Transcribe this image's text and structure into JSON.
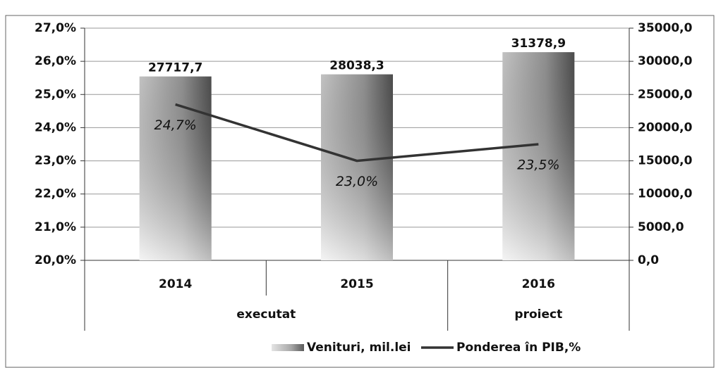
{
  "chart_data": {
    "type": "bar_line",
    "categories": [
      "2014",
      "2015",
      "2016"
    ],
    "category_groups": [
      "executat",
      "executat",
      "proiect"
    ],
    "series": [
      {
        "name": "Venituri, mil.lei",
        "type": "bar",
        "axis": "y2",
        "color": "#777777",
        "values": [
          27717.7,
          28038.3,
          31378.9
        ],
        "value_labels": [
          "27717,7",
          "28038,3",
          "31378,9"
        ]
      },
      {
        "name": "Ponderea în PIB,%",
        "type": "line",
        "axis": "y",
        "color": "#333333",
        "values": [
          24.7,
          23.0,
          23.5
        ],
        "value_labels": [
          "24,7%",
          "23,0%",
          "23,5%"
        ]
      }
    ],
    "ylim": [
      20,
      27
    ],
    "yticks": [
      {
        "value": 20,
        "label": "20,0%"
      },
      {
        "value": 21,
        "label": "21,0%"
      },
      {
        "value": 22,
        "label": "22,0%"
      },
      {
        "value": 23,
        "label": "23,0%"
      },
      {
        "value": 24,
        "label": "24,0%"
      },
      {
        "value": 25,
        "label": "25,0%"
      },
      {
        "value": 26,
        "label": "26,0%"
      },
      {
        "value": 27,
        "label": "27,0%"
      }
    ],
    "y2lim": [
      0,
      35000
    ],
    "y2ticks": [
      {
        "value": 0,
        "label": "0,0"
      },
      {
        "value": 5000,
        "label": "5000,0"
      },
      {
        "value": 10000,
        "label": "10000,0"
      },
      {
        "value": 15000,
        "label": "15000,0"
      },
      {
        "value": 20000,
        "label": "20000,0"
      },
      {
        "value": 25000,
        "label": "25000,0"
      },
      {
        "value": 30000,
        "label": "30000,0"
      },
      {
        "value": 35000,
        "label": "35000,0"
      }
    ],
    "grid": true,
    "legend": "bottom"
  }
}
